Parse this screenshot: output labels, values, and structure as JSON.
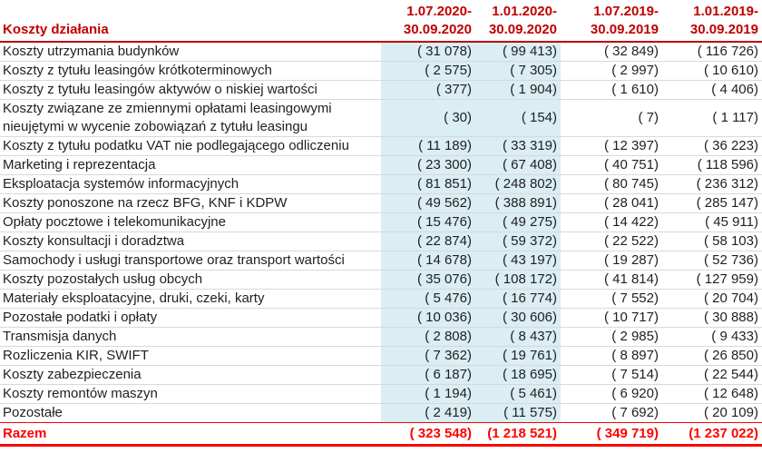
{
  "colors": {
    "header_red": "#C00000",
    "total_red": "#FF0000",
    "highlight_blue": "#DAEEF3",
    "row_separator_gray": "#D9D9D9",
    "text": "#1F1F1F",
    "background": "#FFFFFF"
  },
  "table": {
    "title": "Koszty działania",
    "columns": [
      {
        "line1": "1.07.2020-",
        "line2": "30.09.2020"
      },
      {
        "line1": "1.01.2020-",
        "line2": "30.09.2020"
      },
      {
        "line1": "1.07.2019-",
        "line2": "30.09.2019"
      },
      {
        "line1": "1.01.2019-",
        "line2": "30.09.2019"
      }
    ],
    "rows": [
      {
        "label": "Koszty utrzymania budynków",
        "values": [
          "( 31 078)",
          "( 99 413)",
          "( 32 849)",
          "( 116 726)"
        ]
      },
      {
        "label": "Koszty z tytułu leasingów krótkoterminowych",
        "values": [
          "( 2 575)",
          "( 7 305)",
          "( 2 997)",
          "( 10 610)"
        ]
      },
      {
        "label": "Koszty z tytułu leasingów aktywów o niskiej wartości",
        "values": [
          "( 377)",
          "( 1 904)",
          "( 1 610)",
          "( 4 406)"
        ]
      },
      {
        "label": "Koszty związane ze zmiennymi opłatami leasingowymi nieujętymi w wycenie zobowiązań z tytułu leasingu",
        "values": [
          "( 30)",
          "( 154)",
          "( 7)",
          "( 1 117)"
        ]
      },
      {
        "label": "Koszty z tytułu podatku VAT nie podlegającego odliczeniu",
        "values": [
          "( 11 189)",
          "( 33 319)",
          "( 12 397)",
          "( 36 223)"
        ]
      },
      {
        "label": "Marketing i reprezentacja",
        "values": [
          "( 23 300)",
          "( 67 408)",
          "( 40 751)",
          "( 118 596)"
        ]
      },
      {
        "label": "Eksploatacja systemów informacyjnych",
        "values": [
          "( 81 851)",
          "( 248 802)",
          "( 80 745)",
          "( 236 312)"
        ]
      },
      {
        "label": "Koszty ponoszone na rzecz BFG, KNF i KDPW",
        "values": [
          "( 49 562)",
          "( 388 891)",
          "( 28 041)",
          "( 285 147)"
        ]
      },
      {
        "label": "Opłaty pocztowe i telekomunikacyjne",
        "values": [
          "( 15 476)",
          "( 49 275)",
          "( 14 422)",
          "( 45 911)"
        ]
      },
      {
        "label": "Koszty konsultacji i doradztwa",
        "values": [
          "( 22 874)",
          "( 59 372)",
          "( 22 522)",
          "( 58 103)"
        ]
      },
      {
        "label": "Samochody i usługi transportowe oraz transport wartości",
        "values": [
          "( 14 678)",
          "( 43 197)",
          "( 19 287)",
          "( 52 736)"
        ]
      },
      {
        "label": "Koszty pozostałych usług obcych",
        "values": [
          "( 35 076)",
          "( 108 172)",
          "( 41 814)",
          "( 127 959)"
        ]
      },
      {
        "label": "Materiały eksploatacyjne, druki, czeki, karty",
        "values": [
          "( 5 476)",
          "( 16 774)",
          "( 7 552)",
          "( 20 704)"
        ]
      },
      {
        "label": "Pozostałe podatki i opłaty",
        "values": [
          "( 10 036)",
          "( 30 606)",
          "( 10 717)",
          "( 30 888)"
        ]
      },
      {
        "label": "Transmisja danych",
        "values": [
          "( 2 808)",
          "( 8 437)",
          "( 2 985)",
          "( 9 433)"
        ]
      },
      {
        "label": "Rozliczenia KIR, SWIFT",
        "values": [
          "( 7 362)",
          "( 19 761)",
          "( 8 897)",
          "( 26 850)"
        ]
      },
      {
        "label": "Koszty zabezpieczenia",
        "values": [
          "( 6 187)",
          "( 18 695)",
          "( 7 514)",
          "( 22 544)"
        ]
      },
      {
        "label": "Koszty remontów maszyn",
        "values": [
          "( 1 194)",
          "( 5 461)",
          "( 6 920)",
          "( 12 648)"
        ]
      },
      {
        "label": "Pozostałe",
        "values": [
          "( 2 419)",
          "( 11 575)",
          "( 7 692)",
          "( 20 109)"
        ]
      }
    ],
    "total": {
      "label": "Razem",
      "values": [
        "( 323 548)",
        "(1 218 521)",
        "( 349 719)",
        "(1 237 022)"
      ]
    }
  }
}
